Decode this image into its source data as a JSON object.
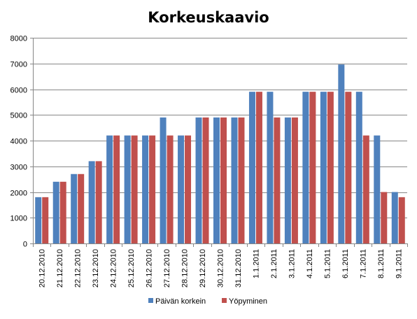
{
  "chart_data": {
    "type": "bar",
    "title": "Korkeuskaavio",
    "xlabel": "",
    "ylabel": "",
    "ylim": [
      0,
      8000
    ],
    "yticks": [
      0,
      1000,
      2000,
      3000,
      4000,
      5000,
      6000,
      7000,
      8000
    ],
    "grid": true,
    "legend": "bottom",
    "categories": [
      "20.12.2010",
      "21.12.2010",
      "22.12.2010",
      "23.12.2010",
      "24.12.2010",
      "25.12.2010",
      "26.12.2010",
      "27.12.2010",
      "28.12.2010",
      "29.12.2010",
      "30.12.2010",
      "31.12.2010",
      "1.1.2011",
      "2.1.2011",
      "3.1.2011",
      "4.1.2011",
      "5.1.2011",
      "6.1.2011",
      "7.1.2011",
      "8.1.2011",
      "9.1.2011"
    ],
    "series": [
      {
        "name": "Päivän korkein",
        "color": "#4f81bd",
        "values": [
          1800,
          2400,
          2700,
          3200,
          4200,
          4200,
          4200,
          4900,
          4200,
          4900,
          4900,
          4900,
          5900,
          5900,
          4900,
          5900,
          5900,
          6960,
          5900,
          4200,
          2000
        ]
      },
      {
        "name": "Yöpyminen",
        "color": "#c0504d",
        "values": [
          1800,
          2400,
          2700,
          3200,
          4200,
          4200,
          4200,
          4200,
          4200,
          4900,
          4900,
          4900,
          5900,
          4900,
          4900,
          5900,
          5900,
          5900,
          4200,
          2000,
          1800
        ]
      }
    ]
  }
}
